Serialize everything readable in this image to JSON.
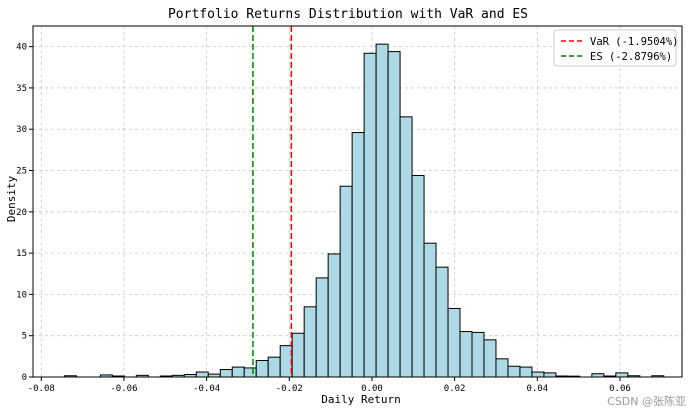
{
  "chart_data": {
    "type": "histogram",
    "title": "Portfolio Returns Distribution with VaR and ES",
    "xlabel": "Daily Return",
    "ylabel": "Density",
    "xlim": [
      -0.082,
      0.075
    ],
    "ylim": [
      0,
      42.5
    ],
    "grid": true,
    "legend_position": "top-right",
    "x_ticks": [
      -0.08,
      -0.06,
      -0.04,
      -0.02,
      0.0,
      0.02,
      0.04,
      0.06
    ],
    "x_tick_labels": [
      "-0.08",
      "-0.06",
      "-0.04",
      "-0.02",
      "0.00",
      "0.02",
      "0.04",
      "0.06"
    ],
    "y_ticks": [
      0,
      5,
      10,
      15,
      20,
      25,
      30,
      35,
      40
    ],
    "y_tick_labels": [
      "0",
      "5",
      "10",
      "15",
      "20",
      "25",
      "30",
      "35",
      "40"
    ],
    "bar_color": "#add8e6",
    "bar_edge_color": "#000000",
    "bins": [
      {
        "x0": -0.0744,
        "x1": -0.0715,
        "value": 0.15
      },
      {
        "x0": -0.0657,
        "x1": -0.0628,
        "value": 0.25
      },
      {
        "x0": -0.0628,
        "x1": -0.0599,
        "value": 0.12
      },
      {
        "x0": -0.057,
        "x1": -0.0541,
        "value": 0.2
      },
      {
        "x0": -0.0512,
        "x1": -0.0483,
        "value": 0.12
      },
      {
        "x0": -0.0483,
        "x1": -0.0454,
        "value": 0.2
      },
      {
        "x0": -0.0454,
        "x1": -0.0425,
        "value": 0.3
      },
      {
        "x0": -0.0425,
        "x1": -0.0396,
        "value": 0.6
      },
      {
        "x0": -0.0396,
        "x1": -0.0367,
        "value": 0.35
      },
      {
        "x0": -0.0367,
        "x1": -0.0338,
        "value": 0.9
      },
      {
        "x0": -0.0338,
        "x1": -0.0309,
        "value": 1.2
      },
      {
        "x0": -0.0309,
        "x1": -0.028,
        "value": 1.1
      },
      {
        "x0": -0.028,
        "x1": -0.0251,
        "value": 2.0
      },
      {
        "x0": -0.0251,
        "x1": -0.0222,
        "value": 2.4
      },
      {
        "x0": -0.0222,
        "x1": -0.0193,
        "value": 3.8
      },
      {
        "x0": -0.0193,
        "x1": -0.0164,
        "value": 5.3
      },
      {
        "x0": -0.0164,
        "x1": -0.0135,
        "value": 8.5
      },
      {
        "x0": -0.0135,
        "x1": -0.0106,
        "value": 12.0
      },
      {
        "x0": -0.0106,
        "x1": -0.0077,
        "value": 14.9
      },
      {
        "x0": -0.0077,
        "x1": -0.0048,
        "value": 23.1
      },
      {
        "x0": -0.0048,
        "x1": -0.0019,
        "value": 29.6
      },
      {
        "x0": -0.0019,
        "x1": 0.001,
        "value": 39.2
      },
      {
        "x0": 0.001,
        "x1": 0.0039,
        "value": 40.3
      },
      {
        "x0": 0.0039,
        "x1": 0.0068,
        "value": 39.4
      },
      {
        "x0": 0.0068,
        "x1": 0.0097,
        "value": 31.5
      },
      {
        "x0": 0.0097,
        "x1": 0.0126,
        "value": 24.4
      },
      {
        "x0": 0.0126,
        "x1": 0.0155,
        "value": 16.2
      },
      {
        "x0": 0.0155,
        "x1": 0.0184,
        "value": 13.3
      },
      {
        "x0": 0.0184,
        "x1": 0.0213,
        "value": 8.3
      },
      {
        "x0": 0.0213,
        "x1": 0.0242,
        "value": 5.5
      },
      {
        "x0": 0.0242,
        "x1": 0.0271,
        "value": 5.4
      },
      {
        "x0": 0.0271,
        "x1": 0.03,
        "value": 4.5
      },
      {
        "x0": 0.03,
        "x1": 0.0329,
        "value": 2.2
      },
      {
        "x0": 0.0329,
        "x1": 0.0358,
        "value": 1.3
      },
      {
        "x0": 0.0358,
        "x1": 0.0387,
        "value": 1.2
      },
      {
        "x0": 0.0387,
        "x1": 0.0416,
        "value": 0.6
      },
      {
        "x0": 0.0416,
        "x1": 0.0445,
        "value": 0.5
      },
      {
        "x0": 0.0445,
        "x1": 0.0474,
        "value": 0.12
      },
      {
        "x0": 0.0474,
        "x1": 0.0503,
        "value": 0.1
      },
      {
        "x0": 0.0532,
        "x1": 0.0561,
        "value": 0.4
      },
      {
        "x0": 0.0561,
        "x1": 0.059,
        "value": 0.12
      },
      {
        "x0": 0.059,
        "x1": 0.0619,
        "value": 0.5
      },
      {
        "x0": 0.0619,
        "x1": 0.0648,
        "value": 0.15
      },
      {
        "x0": 0.0677,
        "x1": 0.0706,
        "value": 0.15
      }
    ],
    "reference_lines": [
      {
        "name": "VaR (-1.9504%)",
        "x": -0.019504,
        "color": "#ff0000",
        "style": "dashed"
      },
      {
        "name": "ES (-2.8796%)",
        "x": -0.028796,
        "color": "#008000",
        "style": "dashed"
      }
    ]
  },
  "watermark": "CSDN @张陈亚"
}
